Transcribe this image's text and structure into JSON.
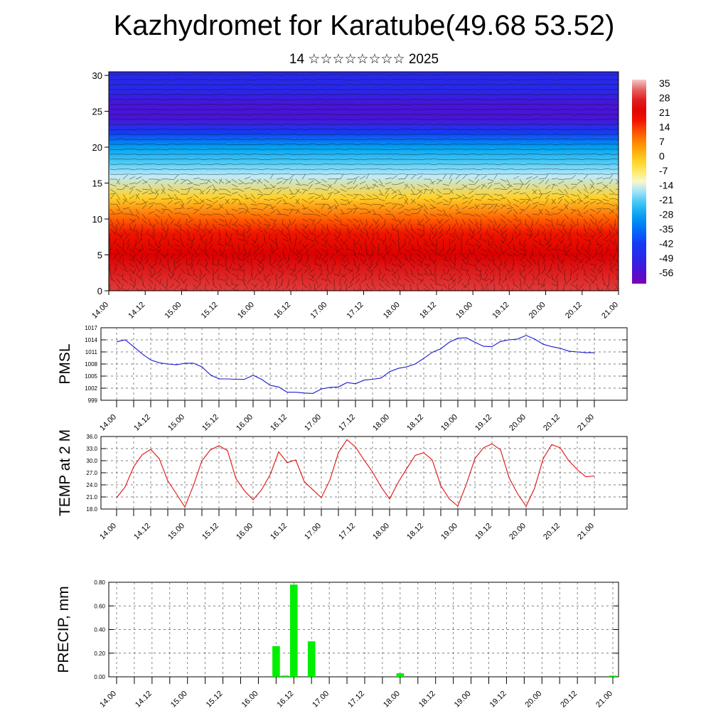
{
  "header": {
    "title": "Kazhydromet for Karatube(49.68 53.52)",
    "subtitle": "14 ☆☆☆☆☆☆☆☆ 2025"
  },
  "colors": {
    "pmsl_line": "#1a1ad0",
    "temp_line": "#e01010",
    "precip_bar": "#00ee00"
  },
  "chart_data": [
    {
      "type": "heatmap",
      "title": "",
      "ylim": [
        0,
        30.5
      ],
      "yticks": [
        0,
        5,
        10,
        15,
        20,
        25,
        30
      ],
      "xticks": [
        "14.00",
        "14.12",
        "15.00",
        "15.12",
        "16.00",
        "16.12",
        "17.00",
        "17.12",
        "18.00",
        "18.12",
        "19.00",
        "19.12",
        "20.00",
        "20.12",
        "21.00"
      ],
      "colorbar": {
        "labels": [
          "35",
          "28",
          "21",
          "14",
          "7",
          "0",
          "-7",
          "-14",
          "-21",
          "-28",
          "-35",
          "-42",
          "-49",
          "-56"
        ],
        "range": [
          -63,
          42
        ]
      },
      "temperature_profile": [
        {
          "height": 0,
          "value": 35
        },
        {
          "height": 5,
          "value": 28
        },
        {
          "height": 8,
          "value": 21
        },
        {
          "height": 10,
          "value": 14
        },
        {
          "height": 13,
          "value": 0
        },
        {
          "height": 16,
          "value": -14
        },
        {
          "height": 18,
          "value": -21
        },
        {
          "height": 20,
          "value": -28
        },
        {
          "height": 22,
          "value": -42
        },
        {
          "height": 24,
          "value": -56
        },
        {
          "height": 26,
          "value": -56
        },
        {
          "height": 28,
          "value": -49
        },
        {
          "height": 30.5,
          "value": -49
        }
      ],
      "overlay": "wind barbs"
    },
    {
      "type": "line",
      "ylabel": "PMSL",
      "ylim": [
        999,
        1017
      ],
      "yticks": [
        "999",
        "1002",
        "1005",
        "1008",
        "1011",
        "1014",
        "1017"
      ],
      "xticks": [
        "14.00",
        "14.12",
        "15.00",
        "15.12",
        "16.00",
        "16.12",
        "17.00",
        "17.12",
        "18.00",
        "18.12",
        "19.00",
        "19.12",
        "20.00",
        "20.12",
        "21.00"
      ],
      "x": [
        0,
        3,
        6,
        9,
        12,
        15,
        18,
        21,
        24,
        27,
        30,
        33,
        36,
        39,
        42,
        45,
        48,
        51,
        54,
        57,
        60,
        63,
        66,
        69,
        72,
        75,
        78,
        81,
        84,
        87,
        90,
        93,
        96,
        99,
        102,
        105,
        108,
        111,
        114,
        117,
        120,
        123,
        126,
        129,
        132,
        135,
        138,
        141,
        144,
        147,
        150,
        153,
        156,
        159,
        162,
        165,
        168
      ],
      "values": [
        1013.5,
        1014,
        1012.3,
        1010.5,
        1009,
        1008.3,
        1008,
        1007.8,
        1008.2,
        1008.2,
        1007.3,
        1005.3,
        1004.3,
        1004.3,
        1004.2,
        1004.2,
        1005.2,
        1004.2,
        1002.7,
        1002.3,
        1001,
        1001,
        1000.8,
        1000.7,
        1001.8,
        1002.2,
        1002.3,
        1003.4,
        1003.1,
        1004,
        1004.2,
        1004.5,
        1006.1,
        1006.9,
        1007.3,
        1008,
        1009.4,
        1010.9,
        1011.8,
        1013.4,
        1014.4,
        1014.5,
        1013.4,
        1012.4,
        1012.3,
        1013.6,
        1014,
        1014.2,
        1015.1,
        1014.2,
        1012.9,
        1012.3,
        1011.9,
        1011.2,
        1011,
        1010.8,
        1010.8
      ]
    },
    {
      "type": "line",
      "ylabel": "TEMP at 2 M",
      "ylim": [
        18,
        36
      ],
      "yticks": [
        "18.0",
        "21.0",
        "24.0",
        "27.0",
        "30.0",
        "33.0",
        "36.0"
      ],
      "xticks": [
        "14.00",
        "14.12",
        "15.00",
        "15.12",
        "16.00",
        "16.12",
        "17.00",
        "17.12",
        "18.00",
        "18.12",
        "19.00",
        "19.12",
        "20.00",
        "20.12",
        "21.00"
      ],
      "x": [
        0,
        3,
        6,
        9,
        12,
        15,
        18,
        21,
        24,
        27,
        30,
        33,
        36,
        39,
        42,
        45,
        48,
        51,
        54,
        57,
        60,
        63,
        66,
        69,
        72,
        75,
        78,
        81,
        84,
        87,
        90,
        93,
        96,
        99,
        102,
        105,
        108,
        111,
        114,
        117,
        120,
        123,
        126,
        129,
        132,
        135,
        138,
        141,
        144,
        147,
        150,
        153,
        156,
        159,
        162,
        165,
        168
      ],
      "values": [
        20.8,
        23.5,
        28.5,
        31.5,
        32.8,
        30.5,
        25,
        21.8,
        18.5,
        23.8,
        30,
        32.7,
        33.7,
        32.5,
        25.5,
        22.5,
        20.3,
        22.8,
        26.5,
        32.2,
        29.5,
        30.2,
        24.8,
        22.8,
        20.8,
        25.2,
        32,
        35.2,
        33.4,
        30.2,
        27.2,
        23.5,
        20.5,
        24.6,
        28,
        31.3,
        32,
        30.2,
        23.8,
        20.5,
        18.7,
        24.2,
        30.5,
        33.2,
        34.2,
        32.7,
        25.8,
        21.8,
        18.7,
        23.2,
        30.5,
        34,
        33.2,
        30,
        27.8,
        26,
        26.2
      ]
    },
    {
      "type": "bar",
      "ylabel": "PRECIP, mm",
      "ylim": [
        0,
        0.8
      ],
      "yticks": [
        "0.00",
        "0.20",
        "0.40",
        "0.60",
        "0.80"
      ],
      "xticks": [
        "14.00",
        "14.12",
        "15.00",
        "15.12",
        "16.00",
        "16.12",
        "17.00",
        "17.12",
        "18.00",
        "18.12",
        "19.00",
        "19.12",
        "20.00",
        "20.12",
        "21.00"
      ],
      "x": [
        54,
        57,
        60,
        66,
        96,
        168
      ],
      "values": [
        0.26,
        0.01,
        0.78,
        0.3,
        0.03,
        0.01
      ]
    }
  ]
}
